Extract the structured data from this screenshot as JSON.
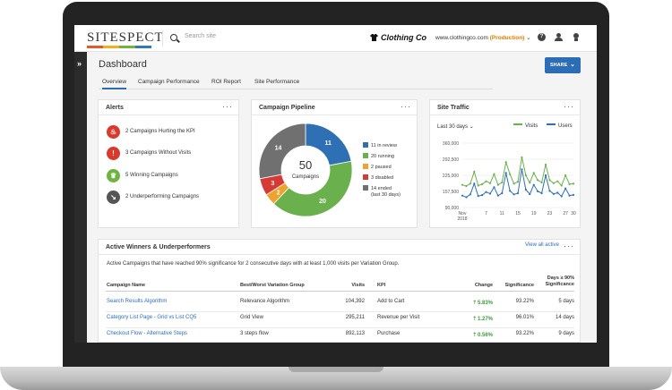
{
  "header": {
    "logo": "SITESPECT",
    "search_placeholder": "Search site",
    "brand": "Clothing Co",
    "site": "www.clothingco.com",
    "environment": "(Production)"
  },
  "page": {
    "title": "Dashboard",
    "share_label": "SHARE",
    "tabs": [
      "Overview",
      "Campaign Performance",
      "ROI Report",
      "Site Performance"
    ]
  },
  "alerts": {
    "title": "Alerts",
    "items": [
      {
        "text": "2 Campaigns Hurting the KPI",
        "color": "#d93a2b",
        "icon": "flame-icon"
      },
      {
        "text": "3 Campaigns Without Visits",
        "color": "#d93a2b",
        "icon": "exclamation-icon"
      },
      {
        "text": "5 Winning Campaigns",
        "color": "#6fb43f",
        "icon": "trophy-icon"
      },
      {
        "text": "2 Underperforming Campaigns",
        "color": "#555555",
        "icon": "trend-down-icon"
      }
    ]
  },
  "pipeline": {
    "title": "Campaign Pipeline",
    "center_value": "50",
    "center_label": "Campaigns",
    "legend": [
      {
        "label": "11 in review"
      },
      {
        "label": "20 running"
      },
      {
        "label": "2 paused"
      },
      {
        "label": "3 disabled"
      },
      {
        "label": "14 ended",
        "sub": "(last 30 days)"
      }
    ]
  },
  "traffic": {
    "title": "Site Traffic",
    "range": "Last 30 days",
    "legend": [
      "Visits",
      "Users"
    ]
  },
  "winners": {
    "title": "Active Winners & Underperformers",
    "view_all": "View all active",
    "subtitle": "Active Campaigns that have reached 90% significance for 2 consecutive days with at least 1,000 visits per Variation Group.",
    "headers": {
      "name": "Campaign Name",
      "variation": "Best/Worst Variation Group",
      "visits": "Visits",
      "kpi": "KPI",
      "change": "Change",
      "significance": "Significance",
      "days_1": "Days ≥ 90%",
      "days_2": "Significance"
    },
    "rows": [
      {
        "name": "Search Results Algorithm",
        "variation": "Relevance Algorithm",
        "visits": "104,392",
        "kpi": "Add to Cart",
        "change": "5.83%",
        "significance": "93.22%",
        "days": "5 days"
      },
      {
        "name": "Category List Page - Grid vs List CQ5",
        "variation": "Grid View",
        "visits": "295,211",
        "kpi": "Revenue per Visit",
        "change": "1.27%",
        "significance": "96.01%",
        "days": "14 days"
      },
      {
        "name": "Checkout Flow - Alternative Steps",
        "variation": "3 steps flow",
        "visits": "892,113",
        "kpi": "Purchase",
        "change": "0.56%",
        "significance": "93.22%",
        "days": "9 days"
      }
    ]
  },
  "chart_data": [
    {
      "type": "pie",
      "title": "Campaign Pipeline",
      "categories": [
        "in review",
        "running",
        "paused",
        "disabled",
        "ended"
      ],
      "values": [
        11,
        20,
        2,
        3,
        14
      ],
      "colors": [
        "#2f6fb3",
        "#6ab04c",
        "#f0a22e",
        "#d63a36",
        "#707070"
      ]
    },
    {
      "type": "line",
      "title": "Site Traffic",
      "x_ticks": [
        "Nov 2018",
        "7",
        "11",
        "15",
        "19",
        "23",
        "27",
        "30"
      ],
      "y_ticks": [
        "360,000",
        "292,500",
        "225,000",
        "157,500",
        "90,000"
      ],
      "ylim": [
        90000,
        360000
      ],
      "series": [
        {
          "name": "Visits",
          "color": "#6ab04c",
          "values": [
            185000,
            180000,
            190000,
            240000,
            182000,
            188000,
            200000,
            192000,
            230000,
            185000,
            195000,
            280000,
            230000,
            190000,
            198000,
            300000,
            225000,
            194000,
            235000,
            205000,
            195000,
            270000,
            205000,
            192000,
            200000,
            182000,
            225000,
            188000,
            190000
          ]
        },
        {
          "name": "Users",
          "color": "#2f6fb3",
          "values": [
            140000,
            133000,
            145000,
            190000,
            138000,
            142000,
            155000,
            148000,
            175000,
            140000,
            150000,
            235000,
            160000,
            145000,
            150000,
            250000,
            165000,
            146000,
            185000,
            158000,
            150000,
            225000,
            160000,
            147000,
            152000,
            137000,
            170000,
            140000,
            143000
          ]
        }
      ]
    }
  ]
}
